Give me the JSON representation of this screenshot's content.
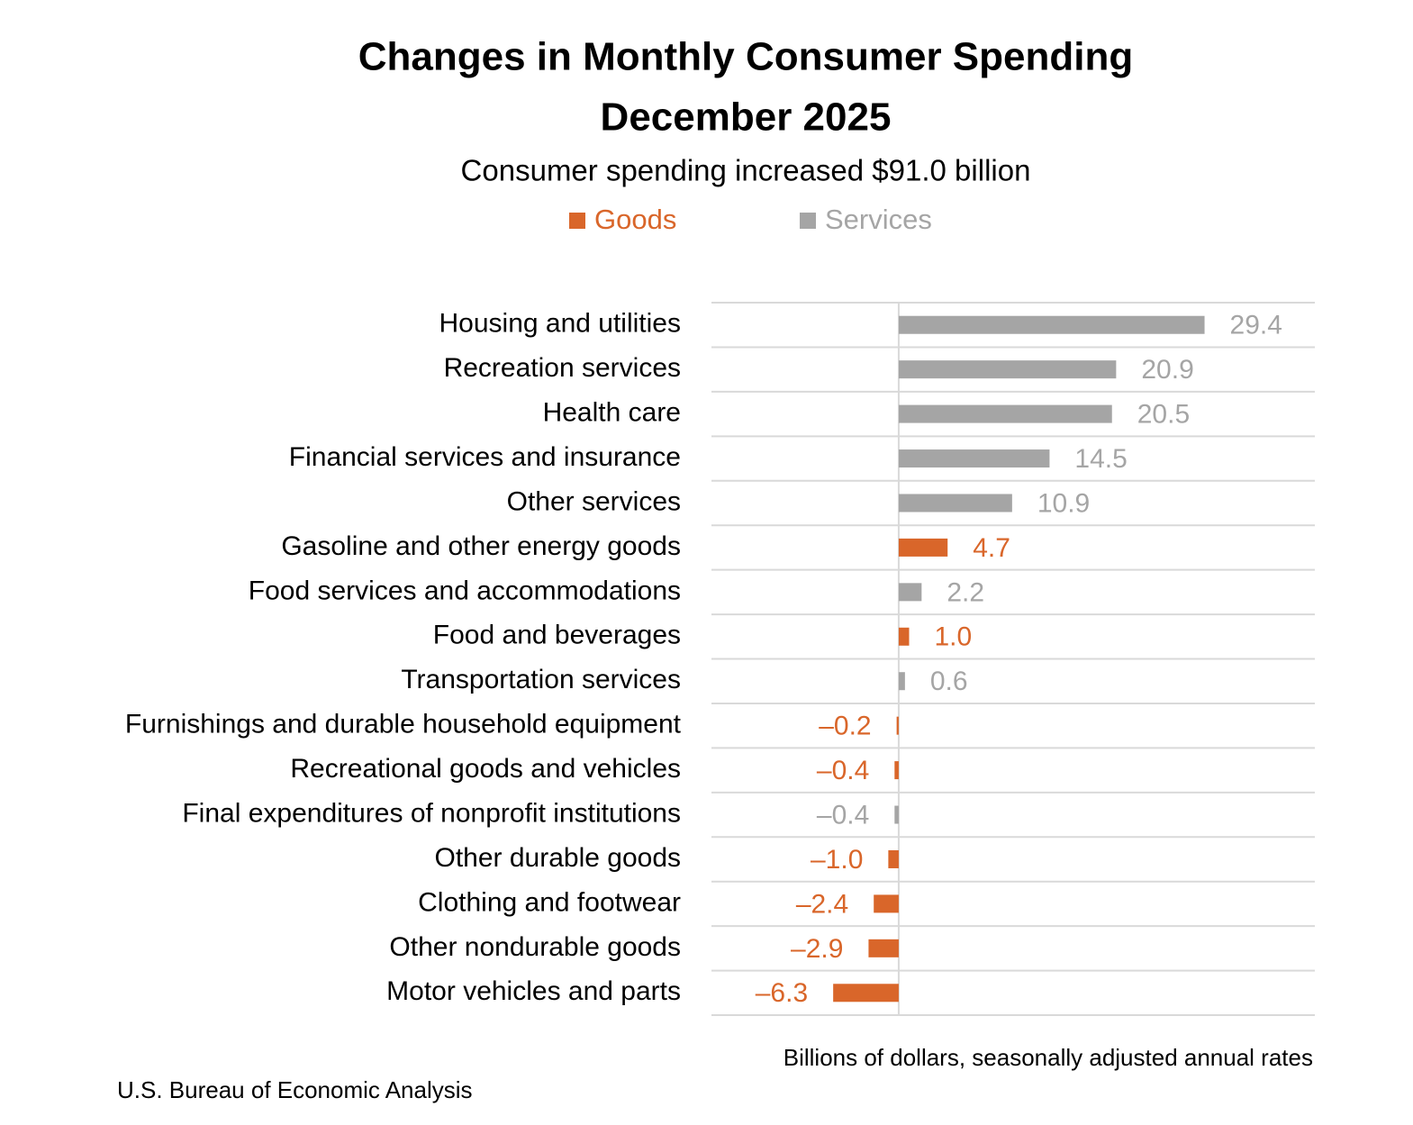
{
  "chart_data": {
    "type": "bar",
    "orientation": "horizontal",
    "title": [
      "Changes in Monthly Consumer Spending",
      "December 2025"
    ],
    "subtitle": "Consumer spending increased $91.0 billion",
    "categories": [
      "Housing and utilities",
      "Recreation services",
      "Health care",
      "Financial services and insurance",
      "Other services",
      "Gasoline and other energy goods",
      "Food services and accommodations",
      "Food and beverages",
      "Transportation services",
      "Furnishings and durable household equipment",
      "Recreational goods and vehicles",
      "Final expenditures of nonprofit institutions",
      "Other durable goods",
      "Clothing and footwear",
      "Other nondurable goods",
      "Motor vehicles and parts"
    ],
    "series": [
      {
        "name": "Goods",
        "color": "#d9662a",
        "values": [
          null,
          null,
          null,
          null,
          null,
          4.7,
          null,
          1.0,
          null,
          -0.2,
          -0.4,
          null,
          -1.0,
          -2.4,
          -2.9,
          -6.3
        ],
        "value_labels": [
          null,
          null,
          null,
          null,
          null,
          "4.7",
          null,
          "1.0",
          null,
          "–0.2",
          "–0.4",
          null,
          "–1.0",
          "–2.4",
          "–2.9",
          "–6.3"
        ]
      },
      {
        "name": "Services",
        "color": "#a5a5a5",
        "values": [
          29.4,
          20.9,
          20.5,
          14.5,
          10.9,
          null,
          2.2,
          null,
          0.6,
          null,
          null,
          -0.4,
          null,
          null,
          null,
          null
        ],
        "value_labels": [
          "29.4",
          "20.9",
          "20.5",
          "14.5",
          "10.9",
          null,
          "2.2",
          null,
          "0.6",
          null,
          null,
          "–0.4",
          null,
          null,
          null,
          null
        ]
      }
    ],
    "xlim": [
      -18,
      40
    ],
    "grid": true,
    "note": "Billions of dollars, seasonally adjusted annual rates",
    "source": "U.S. Bureau of Economic Analysis"
  }
}
